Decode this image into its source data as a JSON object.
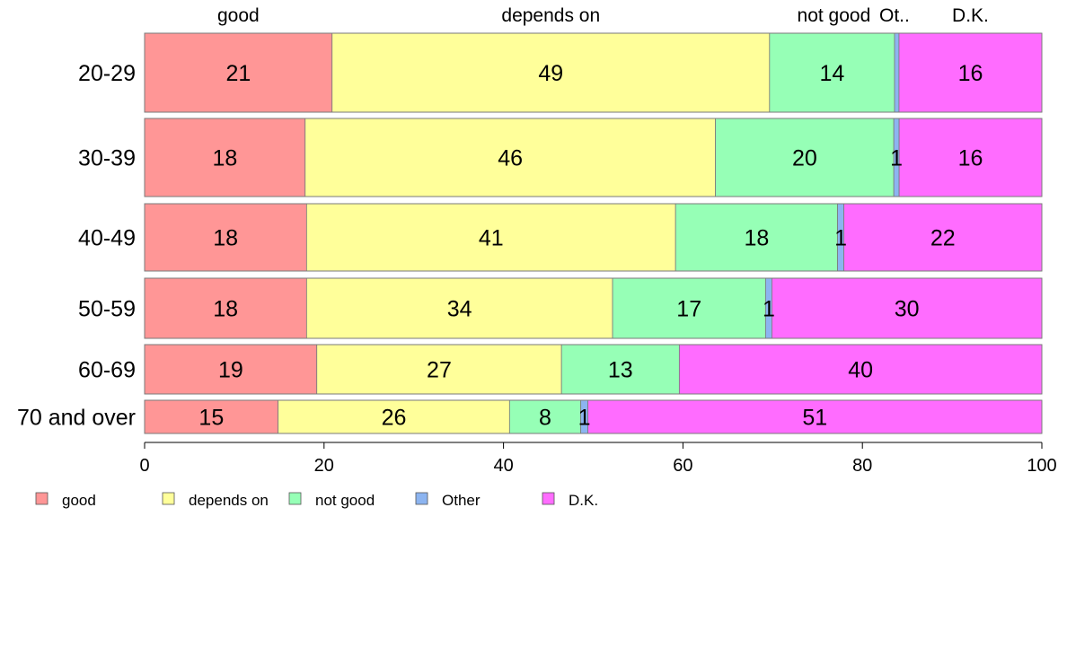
{
  "chart_data": {
    "type": "bar",
    "orientation": "horizontal",
    "stacked": true,
    "categories": [
      "20-29",
      "30-39",
      "40-49",
      "50-59",
      "60-69",
      "70 and over"
    ],
    "series": [
      {
        "name": "good",
        "color": "#FF9696",
        "values": [
          21,
          18,
          18,
          18,
          19,
          15
        ]
      },
      {
        "name": "depends on",
        "color": "#FFFF9A",
        "values": [
          49,
          46,
          41,
          34,
          27,
          26
        ]
      },
      {
        "name": "not good",
        "color": "#96FFB6",
        "values": [
          14,
          20,
          18,
          17,
          13,
          8
        ]
      },
      {
        "name": "Other",
        "color": "#8CB4F0",
        "values": [
          0.5,
          0.6,
          0.7,
          0.7,
          0,
          0.8
        ]
      },
      {
        "name": "D.K.",
        "color": "#FF6CFF",
        "values": [
          16,
          16,
          22,
          30,
          40,
          51
        ]
      }
    ],
    "segment_labels": [
      [
        "21",
        "49",
        "14",
        "",
        "16"
      ],
      [
        "18",
        "46",
        "20",
        "1",
        "16"
      ],
      [
        "18",
        "41",
        "18",
        "1",
        "22"
      ],
      [
        "18",
        "34",
        "17",
        "1",
        "30"
      ],
      [
        "19",
        "27",
        "13",
        "",
        "40"
      ],
      [
        "15",
        "26",
        "8",
        "1",
        "51"
      ]
    ],
    "top_labels": [
      "good",
      "depends on",
      "not good",
      "Ot..",
      "D.K."
    ],
    "xlim": [
      0,
      100
    ],
    "xticks": [
      0,
      20,
      40,
      60,
      80,
      100
    ],
    "grid": false,
    "legend_position": "bottom-left"
  }
}
